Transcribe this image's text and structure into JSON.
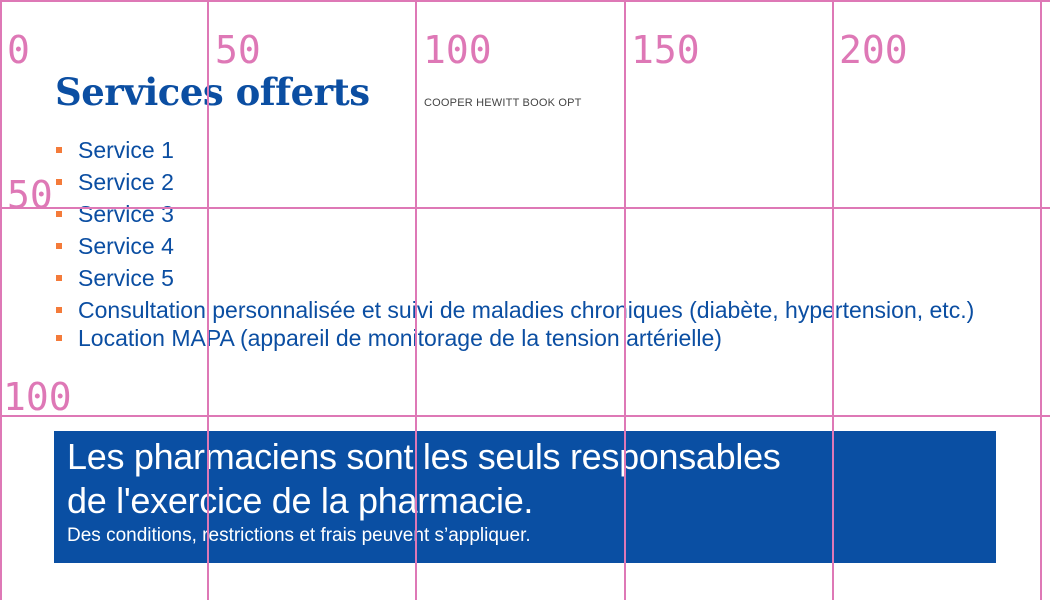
{
  "title": "Services offerts",
  "services": [
    "Service 1",
    "Service 2",
    "Service 3",
    "Service 4",
    "Service 5"
  ],
  "overlay_services": [
    "Consultation personnalisée et suivi de maladies chroniques (diabète, hypertension, etc.)",
    "Location MAPA (appareil de monitorage de la tension artérielle)"
  ],
  "font_label": "COOPER HEWITT BOOK OPT",
  "banner": {
    "line1": "Les pharmaciens sont les seuls responsables",
    "line2": "de l'exercice de la pharmacie.",
    "note": "Des conditions, restrictions et frais peuvent s’appliquer."
  },
  "grid": {
    "x_labels": [
      "0",
      "50",
      "100",
      "150",
      "200"
    ],
    "y_labels": [
      "50",
      "100"
    ],
    "color": "#de78b6"
  },
  "colors": {
    "brand_blue": "#0a4fa3",
    "bullet_orange": "#f47b3a"
  }
}
